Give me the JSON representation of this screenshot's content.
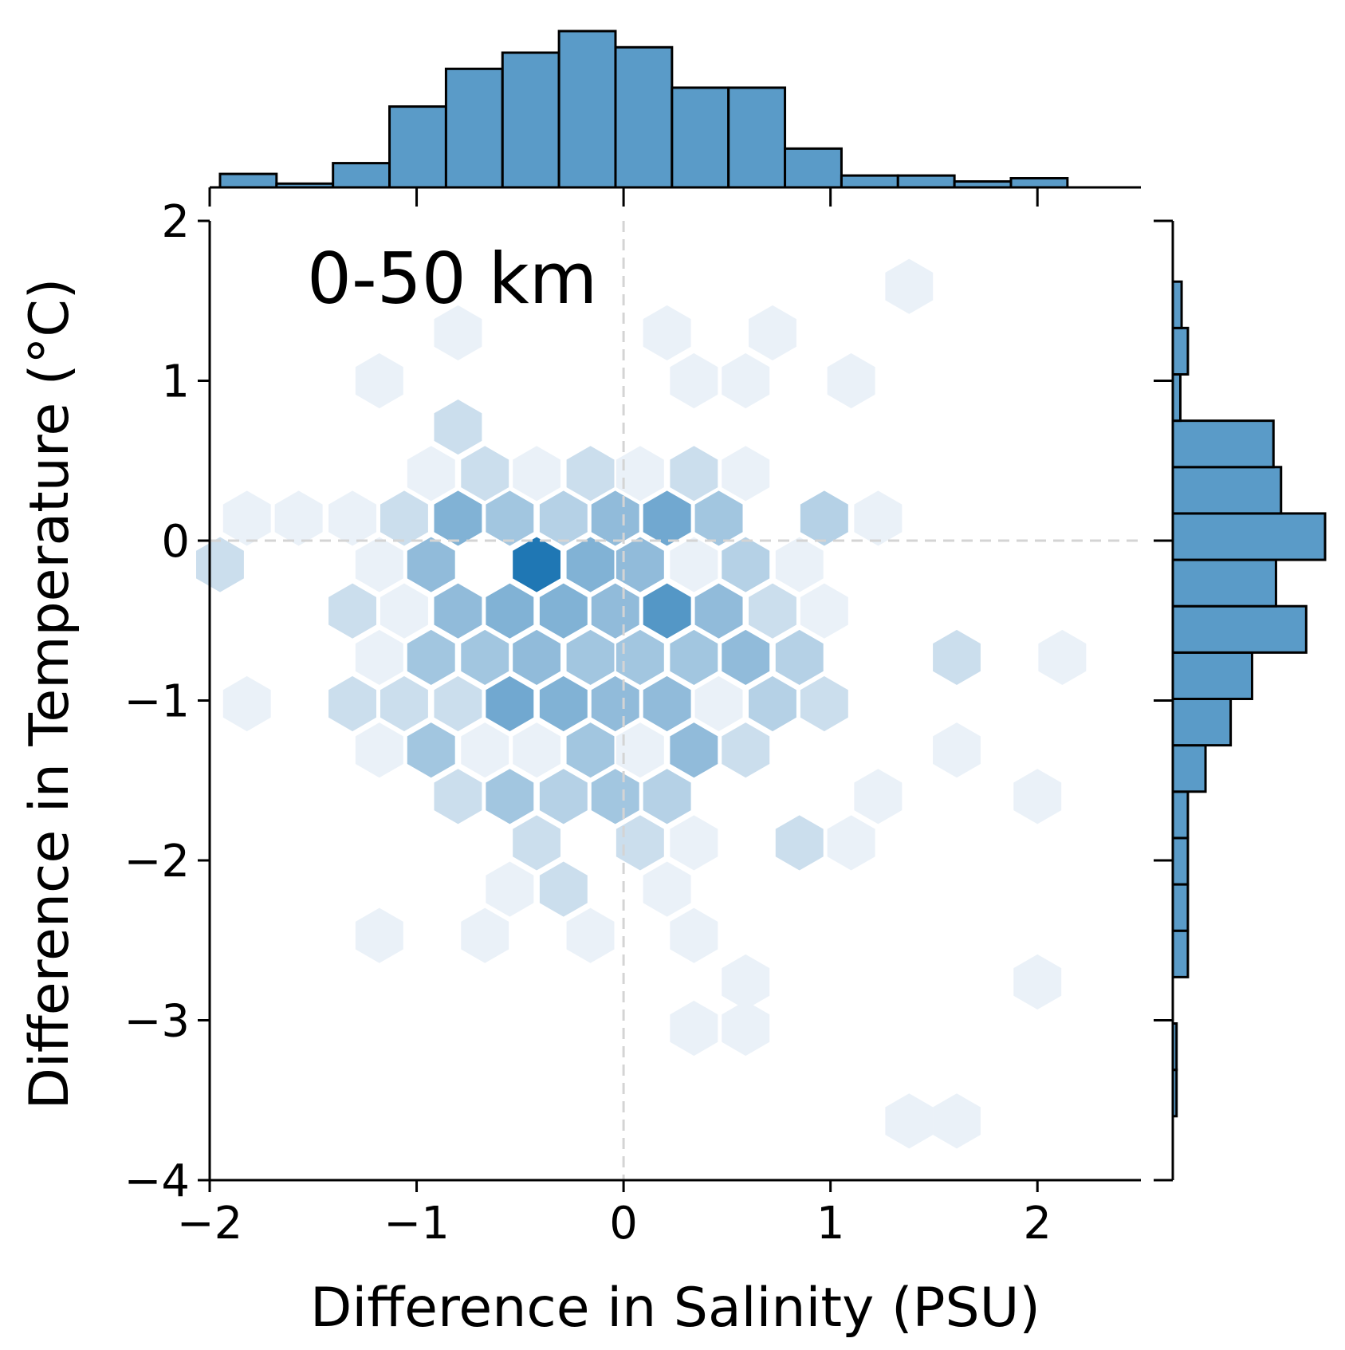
{
  "chart_data": {
    "type": "hexbin",
    "annotation": "0-50 km",
    "xlabel": "Difference in Salinity (PSU)",
    "ylabel": "Difference in Temperature (°C)",
    "xlim": [
      -2,
      2.5
    ],
    "ylim": [
      -4,
      2
    ],
    "x_ticks": [
      -2,
      -1,
      0,
      1,
      2
    ],
    "y_ticks": [
      -4,
      -3,
      -2,
      -1,
      0,
      1,
      2
    ],
    "x_tick_labels": [
      "−2",
      "−1",
      "0",
      "1",
      "2"
    ],
    "y_tick_labels": [
      "−4",
      "−3",
      "−2",
      "−1",
      "0",
      "1",
      "2"
    ],
    "reference_lines": {
      "x": 0,
      "y": 0,
      "style": "dashed",
      "color": "#d4d4d4"
    },
    "colors": {
      "hex_dark": "#1f77b4",
      "hex_light": "#eaf1f8",
      "hist_fill": "#5a9bc8",
      "hist_edge": "#000000"
    },
    "hexbins": [
      {
        "x": 1.38,
        "y": 1.59,
        "count": 1
      },
      {
        "x": -0.8,
        "y": 1.3,
        "count": 1
      },
      {
        "x": 0.21,
        "y": 1.3,
        "count": 1
      },
      {
        "x": 0.72,
        "y": 1.3,
        "count": 1
      },
      {
        "x": -1.18,
        "y": 1.0,
        "count": 1
      },
      {
        "x": 0.34,
        "y": 1.0,
        "count": 1
      },
      {
        "x": 0.59,
        "y": 1.0,
        "count": 1
      },
      {
        "x": 1.1,
        "y": 1.0,
        "count": 1
      },
      {
        "x": -0.8,
        "y": 0.71,
        "count": 2
      },
      {
        "x": -0.93,
        "y": 0.42,
        "count": 1
      },
      {
        "x": -0.67,
        "y": 0.42,
        "count": 2
      },
      {
        "x": -0.42,
        "y": 0.42,
        "count": 1
      },
      {
        "x": -0.16,
        "y": 0.42,
        "count": 2
      },
      {
        "x": 0.08,
        "y": 0.42,
        "count": 1
      },
      {
        "x": 0.34,
        "y": 0.42,
        "count": 2
      },
      {
        "x": 0.59,
        "y": 0.42,
        "count": 1
      },
      {
        "x": -1.82,
        "y": 0.14,
        "count": 1
      },
      {
        "x": -1.57,
        "y": 0.14,
        "count": 1
      },
      {
        "x": -1.31,
        "y": 0.14,
        "count": 1
      },
      {
        "x": -1.06,
        "y": 0.14,
        "count": 2
      },
      {
        "x": -0.8,
        "y": 0.14,
        "count": 6
      },
      {
        "x": -0.55,
        "y": 0.14,
        "count": 4
      },
      {
        "x": -0.29,
        "y": 0.14,
        "count": 3
      },
      {
        "x": -0.04,
        "y": 0.14,
        "count": 5
      },
      {
        "x": 0.21,
        "y": 0.14,
        "count": 7
      },
      {
        "x": 0.46,
        "y": 0.14,
        "count": 4
      },
      {
        "x": 0.97,
        "y": 0.14,
        "count": 3
      },
      {
        "x": 1.23,
        "y": 0.14,
        "count": 1
      },
      {
        "x": -1.95,
        "y": -0.15,
        "count": 2
      },
      {
        "x": -1.18,
        "y": -0.15,
        "count": 1
      },
      {
        "x": -0.93,
        "y": -0.15,
        "count": 5
      },
      {
        "x": -0.42,
        "y": -0.15,
        "count": 13
      },
      {
        "x": -0.16,
        "y": -0.15,
        "count": 6
      },
      {
        "x": 0.08,
        "y": -0.15,
        "count": 5
      },
      {
        "x": 0.34,
        "y": -0.15,
        "count": 1
      },
      {
        "x": 0.59,
        "y": -0.15,
        "count": 3
      },
      {
        "x": 0.85,
        "y": -0.15,
        "count": 1
      },
      {
        "x": -1.31,
        "y": -0.44,
        "count": 2
      },
      {
        "x": -1.06,
        "y": -0.44,
        "count": 1
      },
      {
        "x": -0.8,
        "y": -0.44,
        "count": 5
      },
      {
        "x": -0.55,
        "y": -0.44,
        "count": 6
      },
      {
        "x": -0.29,
        "y": -0.44,
        "count": 6
      },
      {
        "x": -0.04,
        "y": -0.44,
        "count": 5
      },
      {
        "x": 0.21,
        "y": -0.44,
        "count": 9
      },
      {
        "x": 0.46,
        "y": -0.44,
        "count": 5
      },
      {
        "x": 0.72,
        "y": -0.44,
        "count": 2
      },
      {
        "x": 0.97,
        "y": -0.44,
        "count": 1
      },
      {
        "x": -1.18,
        "y": -0.73,
        "count": 1
      },
      {
        "x": -0.93,
        "y": -0.73,
        "count": 4
      },
      {
        "x": -0.67,
        "y": -0.73,
        "count": 4
      },
      {
        "x": -0.42,
        "y": -0.73,
        "count": 5
      },
      {
        "x": -0.16,
        "y": -0.73,
        "count": 4
      },
      {
        "x": 0.08,
        "y": -0.73,
        "count": 4
      },
      {
        "x": 0.34,
        "y": -0.73,
        "count": 4
      },
      {
        "x": 0.59,
        "y": -0.73,
        "count": 5
      },
      {
        "x": 0.85,
        "y": -0.73,
        "count": 3
      },
      {
        "x": 1.61,
        "y": -0.73,
        "count": 2
      },
      {
        "x": 2.12,
        "y": -0.73,
        "count": 1
      },
      {
        "x": -1.82,
        "y": -1.02,
        "count": 1
      },
      {
        "x": -1.31,
        "y": -1.02,
        "count": 2
      },
      {
        "x": -1.06,
        "y": -1.02,
        "count": 2
      },
      {
        "x": -0.8,
        "y": -1.02,
        "count": 2
      },
      {
        "x": -0.55,
        "y": -1.02,
        "count": 7
      },
      {
        "x": -0.29,
        "y": -1.02,
        "count": 6
      },
      {
        "x": -0.04,
        "y": -1.02,
        "count": 5
      },
      {
        "x": 0.21,
        "y": -1.02,
        "count": 5
      },
      {
        "x": 0.46,
        "y": -1.02,
        "count": 1
      },
      {
        "x": 0.72,
        "y": -1.02,
        "count": 3
      },
      {
        "x": 0.97,
        "y": -1.02,
        "count": 2
      },
      {
        "x": -1.18,
        "y": -1.31,
        "count": 1
      },
      {
        "x": -0.93,
        "y": -1.31,
        "count": 4
      },
      {
        "x": -0.67,
        "y": -1.31,
        "count": 1
      },
      {
        "x": -0.42,
        "y": -1.31,
        "count": 1
      },
      {
        "x": -0.16,
        "y": -1.31,
        "count": 4
      },
      {
        "x": 0.08,
        "y": -1.31,
        "count": 1
      },
      {
        "x": 0.34,
        "y": -1.31,
        "count": 5
      },
      {
        "x": 0.59,
        "y": -1.31,
        "count": 2
      },
      {
        "x": 1.61,
        "y": -1.31,
        "count": 1
      },
      {
        "x": -0.8,
        "y": -1.6,
        "count": 2
      },
      {
        "x": -0.55,
        "y": -1.6,
        "count": 4
      },
      {
        "x": -0.29,
        "y": -1.6,
        "count": 3
      },
      {
        "x": -0.04,
        "y": -1.6,
        "count": 4
      },
      {
        "x": 0.21,
        "y": -1.6,
        "count": 3
      },
      {
        "x": 1.23,
        "y": -1.6,
        "count": 1
      },
      {
        "x": 2.0,
        "y": -1.6,
        "count": 1
      },
      {
        "x": -0.42,
        "y": -1.89,
        "count": 2
      },
      {
        "x": 0.08,
        "y": -1.89,
        "count": 2
      },
      {
        "x": 0.34,
        "y": -1.89,
        "count": 1
      },
      {
        "x": 0.85,
        "y": -1.89,
        "count": 2
      },
      {
        "x": 1.1,
        "y": -1.89,
        "count": 1
      },
      {
        "x": -0.55,
        "y": -2.18,
        "count": 1
      },
      {
        "x": -0.29,
        "y": -2.18,
        "count": 2
      },
      {
        "x": 0.21,
        "y": -2.18,
        "count": 1
      },
      {
        "x": -1.18,
        "y": -2.47,
        "count": 1
      },
      {
        "x": -0.67,
        "y": -2.47,
        "count": 1
      },
      {
        "x": -0.16,
        "y": -2.47,
        "count": 1
      },
      {
        "x": 0.34,
        "y": -2.47,
        "count": 1
      },
      {
        "x": 0.59,
        "y": -2.76,
        "count": 1
      },
      {
        "x": 2.0,
        "y": -2.76,
        "count": 1
      },
      {
        "x": 0.34,
        "y": -3.05,
        "count": 1
      },
      {
        "x": 0.59,
        "y": -3.05,
        "count": 1
      },
      {
        "x": 1.38,
        "y": -3.63,
        "count": 1
      },
      {
        "x": 1.61,
        "y": -3.63,
        "count": 1
      }
    ],
    "marginal_x_hist": {
      "bin_edges": [
        -1.95,
        -1.677,
        -1.404,
        -1.131,
        -0.858,
        -0.585,
        -0.312,
        -0.039,
        0.234,
        0.507,
        0.78,
        1.053,
        1.326,
        1.599,
        1.872,
        2.145
      ],
      "counts": [
        2.5,
        0.7,
        4.5,
        15,
        22,
        25,
        29,
        26,
        18.5,
        18.5,
        7.2,
        2.2,
        2.2,
        1.1,
        1.7
      ]
    },
    "marginal_y_hist": {
      "bin_edges": [
        -3.6,
        -3.31,
        -3.02,
        -2.73,
        -2.44,
        -2.15,
        -1.86,
        -1.57,
        -1.28,
        -0.99,
        -0.7,
        -0.41,
        -0.12,
        0.17,
        0.46,
        0.75,
        1.04,
        1.33,
        1.62
      ],
      "counts": [
        0.3,
        0.3,
        0,
        1.2,
        1.2,
        1.2,
        1.2,
        2.6,
        4.6,
        6.3,
        10.6,
        8.2,
        12.1,
        8.6,
        8.0,
        0.6,
        1.2,
        0.7
      ]
    }
  }
}
